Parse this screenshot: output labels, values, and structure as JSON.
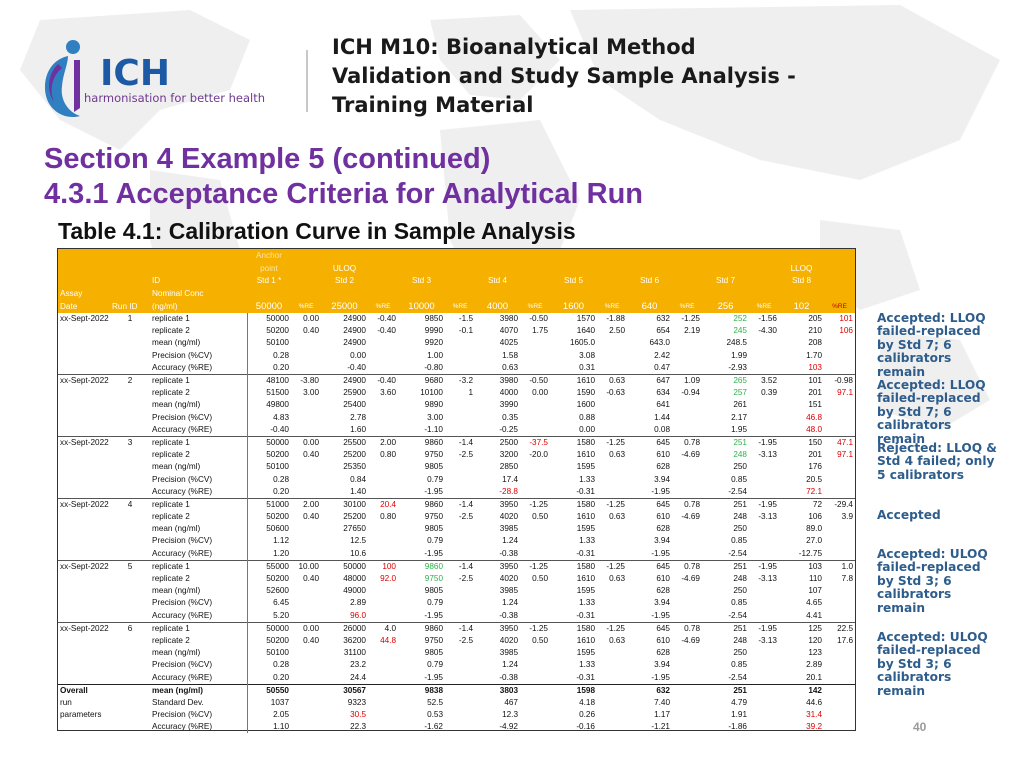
{
  "header": {
    "logo_text": "ICH",
    "logo_tagline": "harmonisation for better health",
    "doc_title_lines": [
      "ICH M10: Bioanalytical Method",
      "Validation and Study Sample Analysis -",
      "Training Material"
    ]
  },
  "section": {
    "line1": "Section 4 Example 5 (continued)",
    "line2": "4.3.1 Acceptance Criteria for Analytical Run",
    "table_caption": "Table 4.1: Calibration Curve in Sample Analysis"
  },
  "table": {
    "header_rows": [
      [
        "",
        "",
        "",
        "Anchor",
        "",
        "",
        "",
        "",
        "",
        "",
        "",
        "",
        "",
        "",
        "",
        "",
        "",
        "",
        ""
      ],
      [
        "",
        "",
        "",
        "point",
        "",
        "ULOQ",
        "",
        "",
        "",
        "",
        "",
        "",
        "",
        "",
        "",
        "",
        "",
        "LLOQ",
        ""
      ],
      [
        "",
        "",
        "ID",
        "Std 1 *",
        "",
        "Std 2",
        "",
        "Std 3",
        "",
        "Std 4",
        "",
        "Std 5",
        "",
        "Std 6",
        "",
        "Std 7",
        "",
        "Std 8",
        ""
      ],
      [
        "Assay",
        "",
        "Nominal Conc",
        "",
        "",
        "",
        "",
        "",
        "",
        "",
        "",
        "",
        "",
        "",
        "",
        "",
        "",
        "",
        ""
      ],
      [
        "Date",
        "Run ID",
        "(ng/ml)",
        "50000",
        "%RE",
        "25000",
        "%RE",
        "10000",
        "%RE",
        "4000",
        "%RE",
        "1600",
        "%RE",
        "640",
        "%RE",
        "256",
        "%RE",
        "102",
        "%RE"
      ]
    ],
    "rows": [
      {
        "cells": [
          "xx-Sept-2022",
          "1",
          "replicate 1",
          "50000",
          "0.00",
          "24900",
          "-0.40",
          "9850",
          "-1.5",
          "3980",
          "-0.50",
          "1570",
          "-1.88",
          "632",
          "-1.25",
          "252",
          "-1.56",
          "205",
          "101"
        ],
        "red": [
          18
        ],
        "green": [
          15
        ]
      },
      {
        "cells": [
          "",
          "",
          "replicate 2",
          "50200",
          "0.40",
          "24900",
          "-0.40",
          "9990",
          "-0.1",
          "4070",
          "1.75",
          "1640",
          "2.50",
          "654",
          "2.19",
          "245",
          "-4.30",
          "210",
          "106"
        ],
        "red": [
          18
        ],
        "green": [
          15
        ]
      },
      {
        "cells": [
          "",
          "",
          "mean (ng/ml)",
          "50100",
          "",
          "24900",
          "",
          "9920",
          "",
          "4025",
          "",
          "1605.0",
          "",
          "643.0",
          "",
          "248.5",
          "",
          "208",
          ""
        ]
      },
      {
        "cells": [
          "",
          "",
          "Precision (%CV)",
          "0.28",
          "",
          "0.00",
          "",
          "1.00",
          "",
          "1.58",
          "",
          "3.08",
          "",
          "2.42",
          "",
          "1.99",
          "",
          "1.70",
          ""
        ]
      },
      {
        "cells": [
          "",
          "",
          "Accuracy (%RE)",
          "0.20",
          "",
          "-0.40",
          "",
          "-0.80",
          "",
          "0.63",
          "",
          "0.31",
          "",
          "0.47",
          "",
          "-2.93",
          "",
          "103",
          ""
        ],
        "red": [
          17
        ]
      },
      {
        "cells": [
          "xx-Sept-2022",
          "2",
          "replicate 1",
          "48100",
          "-3.80",
          "24900",
          "-0.40",
          "9680",
          "-3.2",
          "3980",
          "-0.50",
          "1610",
          "0.63",
          "647",
          "1.09",
          "265",
          "3.52",
          "101",
          "-0.98"
        ],
        "green": [
          15
        ],
        "sep": true
      },
      {
        "cells": [
          "",
          "",
          "replicate 2",
          "51500",
          "3.00",
          "25900",
          "3.60",
          "10100",
          "1",
          "4000",
          "0.00",
          "1590",
          "-0.63",
          "634",
          "-0.94",
          "257",
          "0.39",
          "201",
          "97.1"
        ],
        "red": [
          18
        ],
        "green": [
          15
        ]
      },
      {
        "cells": [
          "",
          "",
          "mean (ng/ml)",
          "49800",
          "",
          "25400",
          "",
          "9890",
          "",
          "3990",
          "",
          "1600",
          "",
          "641",
          "",
          "261",
          "",
          "151",
          ""
        ]
      },
      {
        "cells": [
          "",
          "",
          "Precision (%CV)",
          "4.83",
          "",
          "2.78",
          "",
          "3.00",
          "",
          "0.35",
          "",
          "0.88",
          "",
          "1.44",
          "",
          "2.17",
          "",
          "46.8",
          ""
        ],
        "red": [
          17
        ]
      },
      {
        "cells": [
          "",
          "",
          "Accuracy (%RE)",
          "-0.40",
          "",
          "1.60",
          "",
          "-1.10",
          "",
          "-0.25",
          "",
          "0.00",
          "",
          "0.08",
          "",
          "1.95",
          "",
          "48.0",
          ""
        ],
        "red": [
          17
        ]
      },
      {
        "cells": [
          "xx-Sept-2022",
          "3",
          "replicate 1",
          "50000",
          "0.00",
          "25500",
          "2.00",
          "9860",
          "-1.4",
          "2500",
          "-37.5",
          "1580",
          "-1.25",
          "645",
          "0.78",
          "251",
          "-1.95",
          "150",
          "47.1"
        ],
        "red": [
          10,
          18
        ],
        "green": [
          15
        ],
        "sep": true
      },
      {
        "cells": [
          "",
          "",
          "replicate 2",
          "50200",
          "0.40",
          "25200",
          "0.80",
          "9750",
          "-2.5",
          "3200",
          "-20.0",
          "1610",
          "0.63",
          "610",
          "-4.69",
          "248",
          "-3.13",
          "201",
          "97.1"
        ],
        "red": [
          18
        ],
        "green": [
          15
        ]
      },
      {
        "cells": [
          "",
          "",
          "mean (ng/ml)",
          "50100",
          "",
          "25350",
          "",
          "9805",
          "",
          "2850",
          "",
          "1595",
          "",
          "628",
          "",
          "250",
          "",
          "176",
          ""
        ]
      },
      {
        "cells": [
          "",
          "",
          "Precision (%CV)",
          "0.28",
          "",
          "0.84",
          "",
          "0.79",
          "",
          "17.4",
          "",
          "1.33",
          "",
          "3.94",
          "",
          "0.85",
          "",
          "20.5",
          ""
        ]
      },
      {
        "cells": [
          "",
          "",
          "Accuracy (%RE)",
          "0.20",
          "",
          "1.40",
          "",
          "-1.95",
          "",
          "-28.8",
          "",
          "-0.31",
          "",
          "-1.95",
          "",
          "-2.54",
          "",
          "72.1",
          ""
        ],
        "red": [
          9,
          17
        ]
      },
      {
        "cells": [
          "xx-Sept-2022",
          "4",
          "replicate 1",
          "51000",
          "2.00",
          "30100",
          "20.4",
          "9860",
          "-1.4",
          "3950",
          "-1.25",
          "1580",
          "-1.25",
          "645",
          "0.78",
          "251",
          "-1.95",
          "72",
          "-29.4"
        ],
        "red": [
          6
        ],
        "sep": true
      },
      {
        "cells": [
          "",
          "",
          "replicate 2",
          "50200",
          "0.40",
          "25200",
          "0.80",
          "9750",
          "-2.5",
          "4020",
          "0.50",
          "1610",
          "0.63",
          "610",
          "-4.69",
          "248",
          "-3.13",
          "106",
          "3.9"
        ]
      },
      {
        "cells": [
          "",
          "",
          "mean (ng/ml)",
          "50600",
          "",
          "27650",
          "",
          "9805",
          "",
          "3985",
          "",
          "1595",
          "",
          "628",
          "",
          "250",
          "",
          "89.0",
          ""
        ]
      },
      {
        "cells": [
          "",
          "",
          "Precision (%CV)",
          "1.12",
          "",
          "12.5",
          "",
          "0.79",
          "",
          "1.24",
          "",
          "1.33",
          "",
          "3.94",
          "",
          "0.85",
          "",
          "27.0",
          ""
        ]
      },
      {
        "cells": [
          "",
          "",
          "Accuracy (%RE)",
          "1.20",
          "",
          "10.6",
          "",
          "-1.95",
          "",
          "-0.38",
          "",
          "-0.31",
          "",
          "-1.95",
          "",
          "-2.54",
          "",
          "-12.75",
          ""
        ]
      },
      {
        "cells": [
          "xx-Sept-2022",
          "5",
          "replicate 1",
          "55000",
          "10.00",
          "50000",
          "100",
          "9860",
          "-1.4",
          "3950",
          "-1.25",
          "1580",
          "-1.25",
          "645",
          "0.78",
          "251",
          "-1.95",
          "103",
          "1.0"
        ],
        "red": [
          6
        ],
        "green": [
          7
        ],
        "sep": true
      },
      {
        "cells": [
          "",
          "",
          "replicate 2",
          "50200",
          "0.40",
          "48000",
          "92.0",
          "9750",
          "-2.5",
          "4020",
          "0.50",
          "1610",
          "0.63",
          "610",
          "-4.69",
          "248",
          "-3.13",
          "110",
          "7.8"
        ],
        "red": [
          6
        ],
        "green": [
          7
        ]
      },
      {
        "cells": [
          "",
          "",
          "mean (ng/ml)",
          "52600",
          "",
          "49000",
          "",
          "9805",
          "",
          "3985",
          "",
          "1595",
          "",
          "628",
          "",
          "250",
          "",
          "107",
          ""
        ]
      },
      {
        "cells": [
          "",
          "",
          "Precision (%CV)",
          "6.45",
          "",
          "2.89",
          "",
          "0.79",
          "",
          "1.24",
          "",
          "1.33",
          "",
          "3.94",
          "",
          "0.85",
          "",
          "4.65",
          ""
        ]
      },
      {
        "cells": [
          "",
          "",
          "Accuracy (%RE)",
          "5.20",
          "",
          "96.0",
          "",
          "-1.95",
          "",
          "-0.38",
          "",
          "-0.31",
          "",
          "-1.95",
          "",
          "-2.54",
          "",
          "4.41",
          ""
        ],
        "red": [
          5
        ]
      },
      {
        "cells": [
          "xx-Sept-2022",
          "6",
          "replicate 1",
          "50000",
          "0.00",
          "26000",
          "4.0",
          "9860",
          "-1.4",
          "3950",
          "-1.25",
          "1580",
          "-1.25",
          "645",
          "0.78",
          "251",
          "-1.95",
          "125",
          "22.5"
        ],
        "sep": true
      },
      {
        "cells": [
          "",
          "",
          "replicate 2",
          "50200",
          "0.40",
          "36200",
          "44.8",
          "9750",
          "-2.5",
          "4020",
          "0.50",
          "1610",
          "0.63",
          "610",
          "-4.69",
          "248",
          "-3.13",
          "120",
          "17.6"
        ],
        "red": [
          6
        ]
      },
      {
        "cells": [
          "",
          "",
          "mean (ng/ml)",
          "50100",
          "",
          "31100",
          "",
          "9805",
          "",
          "3985",
          "",
          "1595",
          "",
          "628",
          "",
          "250",
          "",
          "123",
          ""
        ]
      },
      {
        "cells": [
          "",
          "",
          "Precision (%CV)",
          "0.28",
          "",
          "23.2",
          "",
          "0.79",
          "",
          "1.24",
          "",
          "1.33",
          "",
          "3.94",
          "",
          "0.85",
          "",
          "2.89",
          ""
        ]
      },
      {
        "cells": [
          "",
          "",
          "Accuracy (%RE)",
          "0.20",
          "",
          "24.4",
          "",
          "-1.95",
          "",
          "-0.38",
          "",
          "-0.31",
          "",
          "-1.95",
          "",
          "-2.54",
          "",
          "20.1",
          ""
        ]
      },
      {
        "cells": [
          "Overall",
          "",
          "mean (ng/ml)",
          "50550",
          "",
          "30567",
          "",
          "9838",
          "",
          "3803",
          "",
          "1598",
          "",
          "632",
          "",
          "251",
          "",
          "142",
          ""
        ],
        "bold": true,
        "thick": true
      },
      {
        "cells": [
          "run",
          "",
          "Standard Dev.",
          "1037",
          "",
          "9323",
          "",
          "52.5",
          "",
          "467",
          "",
          "4.18",
          "",
          "7.40",
          "",
          "4.79",
          "",
          "44.6",
          ""
        ]
      },
      {
        "cells": [
          "parameters",
          "",
          "Precision (%CV)",
          "2.05",
          "",
          "30.5",
          "",
          "0.53",
          "",
          "12.3",
          "",
          "0.26",
          "",
          "1.17",
          "",
          "1.91",
          "",
          "31.4",
          ""
        ],
        "red": [
          5,
          17
        ]
      },
      {
        "cells": [
          "",
          "",
          "Accuracy (%RE)",
          "1.10",
          "",
          "22.3",
          "",
          "-1.62",
          "",
          "-4.92",
          "",
          "-0.16",
          "",
          "-1.21",
          "",
          "-1.86",
          "",
          "39.2",
          ""
        ],
        "red": [
          17
        ]
      }
    ]
  },
  "notes": [
    {
      "text": "Accepted: LLOQ failed-replaced by Std 7; 6 calibrators remain"
    },
    {
      "text": "Accepted: LLOQ failed-replaced by Std 7; 6 calibrators remain"
    },
    {
      "text": "Rejected: LLOQ & Std 4 failed; only 5 calibrators"
    },
    {
      "text": "Accepted"
    },
    {
      "text": "Accepted: ULOQ failed-replaced by Std 3; 6 calibrators remain"
    },
    {
      "text": "Accepted: ULOQ failed-replaced by Std 3; 6 calibrators remain"
    }
  ],
  "page_number": "40",
  "colors": {
    "header_fill": "#f6b100",
    "section_purple": "#7030a0",
    "note_blue": "#2e5d8c",
    "fail_red": "#e00000",
    "pass_green": "#2fb34a"
  }
}
